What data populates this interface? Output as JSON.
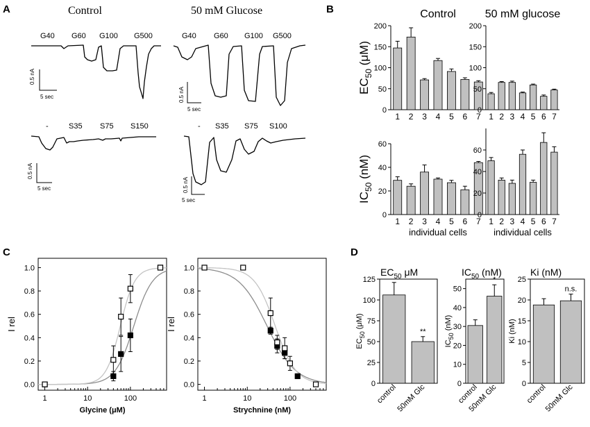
{
  "panels": {
    "a": "A",
    "b": "B",
    "c": "C",
    "d": "D"
  },
  "colors": {
    "bar_fill": "#c0c0c0",
    "fit_dark": "#8c8c8c",
    "fit_light": "#c4c4c4"
  },
  "panel_a": {
    "control_title": "Control",
    "glucose_title": "50 mM Glucose",
    "glycine_labels": [
      "G40",
      "G60",
      "G100",
      "G500"
    ],
    "strych_control_labels": [
      "-",
      "S35",
      "S75",
      "S150"
    ],
    "strych_glucose_labels": [
      "-",
      "S35",
      "S75",
      "S100"
    ],
    "scale_current": "0.5 nA",
    "scale_time": "5 sec"
  },
  "panel_d_titles": {
    "ec50_main": "EC",
    "ec50_sub": "50",
    "ec50_unit": " μM",
    "ic50_main": "IC",
    "ic50_sub": "50",
    "ic50_unit": " (nM)",
    "ki": "Ki (nM)"
  },
  "chart_data": [
    {
      "id": "B-EC50-control",
      "type": "bar",
      "panel": "B",
      "title": "Control",
      "categories": [
        "1",
        "2",
        "3",
        "4",
        "5",
        "6",
        "7"
      ],
      "values": [
        147,
        173,
        71,
        117,
        91,
        72,
        66
      ],
      "errors": [
        16,
        22,
        3,
        5,
        6,
        4,
        3
      ],
      "ylim": [
        0,
        200
      ],
      "yticks": [
        0,
        50,
        100,
        150,
        200
      ],
      "ylabel_main": "EC",
      "ylabel_sub": "50",
      "ylabel_unit": " (μM)",
      "xlabel": ""
    },
    {
      "id": "B-EC50-glucose",
      "type": "bar",
      "panel": "B",
      "title": "50 mM glucose",
      "categories": [
        "1",
        "2",
        "3",
        "4",
        "5",
        "6",
        "7"
      ],
      "values": [
        38,
        65,
        65,
        40,
        59,
        32,
        47
      ],
      "errors": [
        3,
        2,
        3,
        2,
        2,
        3,
        2
      ],
      "ylim": [
        0,
        200
      ],
      "yticks": [
        0,
        50,
        100,
        150,
        200
      ],
      "xlabel": ""
    },
    {
      "id": "B-IC50-control",
      "type": "bar",
      "panel": "B",
      "categories": [
        "1",
        "2",
        "3",
        "4",
        "5",
        "6",
        "7"
      ],
      "values": [
        29,
        24,
        36,
        30,
        27,
        21,
        44
      ],
      "errors": [
        3,
        2,
        6,
        1,
        2,
        3,
        1
      ],
      "ylim": [
        0,
        60
      ],
      "yticks": [
        0,
        20,
        40,
        60
      ],
      "ylabel_main": "IC",
      "ylabel_sub": "50",
      "ylabel_unit": " (nM)",
      "xlabel": "individual cells"
    },
    {
      "id": "B-IC50-glucose",
      "type": "bar",
      "panel": "B",
      "categories": [
        "1",
        "2",
        "3",
        "4",
        "5",
        "6",
        "7"
      ],
      "values": [
        50,
        32,
        29,
        56,
        30,
        67,
        58
      ],
      "errors": [
        3,
        2,
        3,
        4,
        2,
        9,
        5
      ],
      "ylim": [
        0,
        80
      ],
      "yticks": [
        0,
        20,
        40,
        60
      ],
      "xlabel": "individual cells"
    },
    {
      "id": "C-glycine",
      "type": "scatter",
      "panel": "C",
      "xscale": "log",
      "xlim": [
        0.7,
        700
      ],
      "ylim": [
        -0.05,
        1.08
      ],
      "xticks": [
        1,
        10,
        100
      ],
      "yticks": [
        0.0,
        0.2,
        0.4,
        0.6,
        0.8,
        1.0
      ],
      "xlabel": "Glycine (μM)",
      "ylabel": "I rel",
      "series": [
        {
          "name": "control (filled)",
          "marker": "filled-square",
          "x": [
            1,
            40,
            60,
            100,
            500
          ],
          "y": [
            0,
            0.07,
            0.26,
            0.42,
            1.0
          ],
          "err": [
            0,
            0.04,
            0.15,
            0.14,
            0
          ]
        },
        {
          "name": "50 mM glucose (open)",
          "marker": "open-square",
          "x": [
            1,
            40,
            60,
            100,
            500
          ],
          "y": [
            0,
            0.21,
            0.58,
            0.82,
            1.0
          ],
          "err": [
            0,
            0.12,
            0.16,
            0.12,
            0
          ]
        }
      ],
      "fits": [
        {
          "name": "control fit",
          "ec50": 120,
          "hill": 2.0
        },
        {
          "name": "glucose fit",
          "ec50": 58,
          "hill": 2.6
        }
      ]
    },
    {
      "id": "C-strychnine",
      "type": "scatter",
      "panel": "C",
      "xscale": "log",
      "xlim": [
        0.7,
        700
      ],
      "ylim": [
        -0.05,
        1.08
      ],
      "xticks": [
        1,
        10,
        100
      ],
      "yticks": [
        0.0,
        0.2,
        0.4,
        0.6,
        0.8,
        1.0
      ],
      "xlabel": "Strychnine (nM)",
      "ylabel": "I rel",
      "series": [
        {
          "name": "control (filled)",
          "marker": "filled-square",
          "x": [
            35,
            50,
            75,
            150
          ],
          "y": [
            0.46,
            0.33,
            0.27,
            0.07
          ],
          "err": [
            0.03,
            0.06,
            0.05,
            0.02
          ]
        },
        {
          "name": "50 mM glucose (open)",
          "marker": "open-square",
          "x": [
            1,
            8,
            35,
            50,
            75,
            100,
            400
          ],
          "y": [
            1.0,
            1.0,
            0.61,
            0.36,
            0.31,
            0.18,
            0.0
          ],
          "err": [
            0,
            0,
            0.13,
            0.06,
            0.09,
            0.06,
            0
          ]
        }
      ],
      "fits": [
        {
          "name": "control fit",
          "ic50": 29,
          "hill": 1.3
        },
        {
          "name": "glucose fit",
          "ic50": 45,
          "hill": 1.8
        }
      ]
    },
    {
      "id": "D-EC50",
      "type": "bar",
      "panel": "D",
      "categories": [
        "control",
        "50mM Glc"
      ],
      "values": [
        106,
        50
      ],
      "errors": [
        15,
        6
      ],
      "significance": [
        "",
        "**"
      ],
      "ylim": [
        0,
        125
      ],
      "yticks": [
        0,
        25,
        50,
        75,
        100,
        125
      ],
      "ylabel_main": "EC",
      "ylabel_sub": "50",
      "ylabel_unit": " (μM)"
    },
    {
      "id": "D-IC50",
      "type": "bar",
      "panel": "D",
      "categories": [
        "control",
        "50mM Glc"
      ],
      "values": [
        30.5,
        46
      ],
      "errors": [
        3,
        6
      ],
      "significance": [
        "",
        "*"
      ],
      "ylim": [
        0,
        55
      ],
      "yticks": [
        0,
        10,
        20,
        30,
        40,
        50
      ],
      "ylabel_main": "IC",
      "ylabel_sub": "50",
      "ylabel_unit": " (nM)"
    },
    {
      "id": "D-Ki",
      "type": "bar",
      "panel": "D",
      "categories": [
        "control",
        "50mM Glc"
      ],
      "values": [
        18.8,
        19.8
      ],
      "errors": [
        1.5,
        1.6
      ],
      "significance": [
        "",
        "n.s."
      ],
      "ylim": [
        0,
        25
      ],
      "yticks": [
        0,
        5,
        10,
        15,
        20,
        25
      ],
      "ylabel": "Ki (nM)"
    }
  ]
}
